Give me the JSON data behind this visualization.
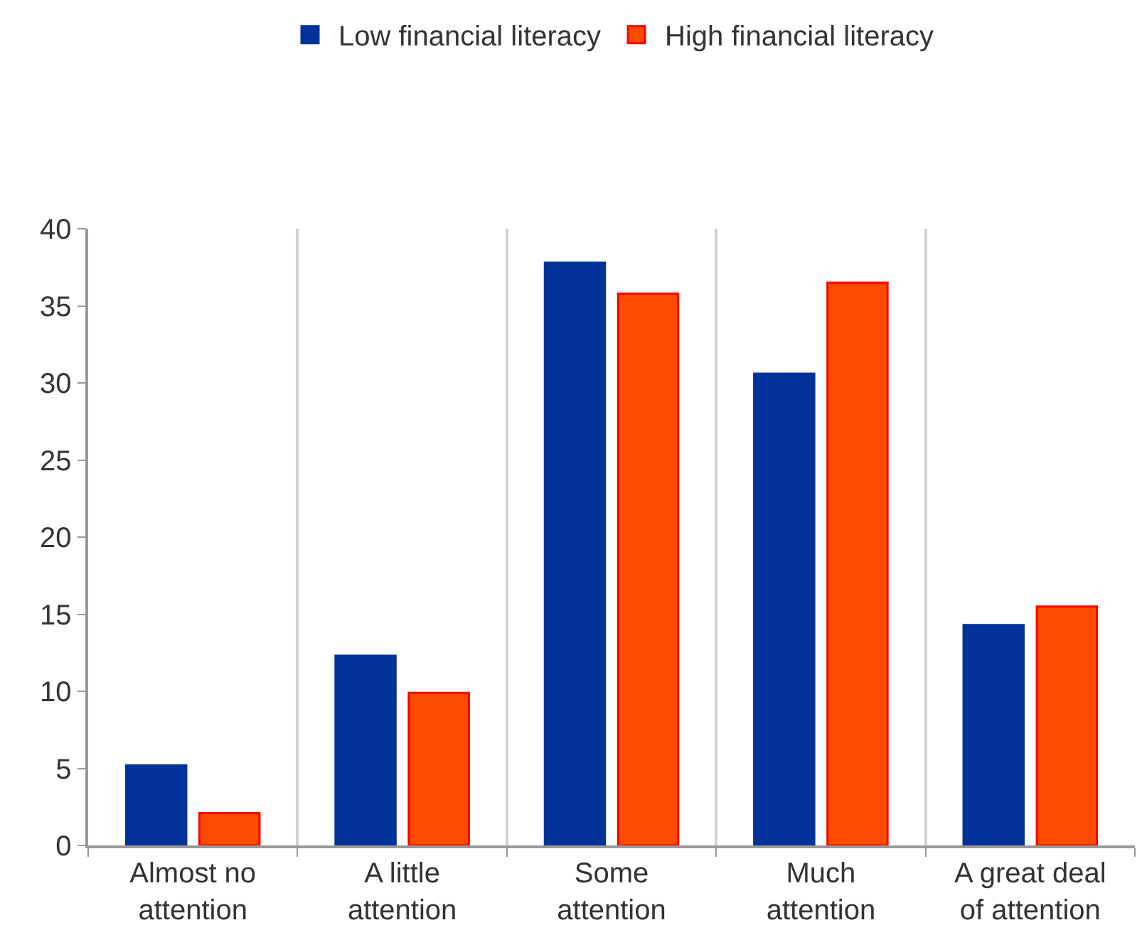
{
  "chart_data": {
    "type": "bar",
    "categories": [
      "Almost no attention",
      "A little attention",
      "Some attention",
      "Much attention",
      "A great deal of attention"
    ],
    "series": [
      {
        "name": "Low financial literacy",
        "color": "#003299",
        "values": [
          5.2,
          12.3,
          37.8,
          30.6,
          14.3
        ]
      },
      {
        "name": "High financial literacy",
        "color": "#ff4b00",
        "values": [
          2.1,
          9.9,
          35.8,
          36.5,
          15.5
        ]
      }
    ],
    "ylim": [
      0,
      40
    ],
    "yticks": [
      0,
      5,
      10,
      15,
      20,
      25,
      30,
      35,
      40
    ],
    "grid": "x",
    "legend": "top"
  }
}
